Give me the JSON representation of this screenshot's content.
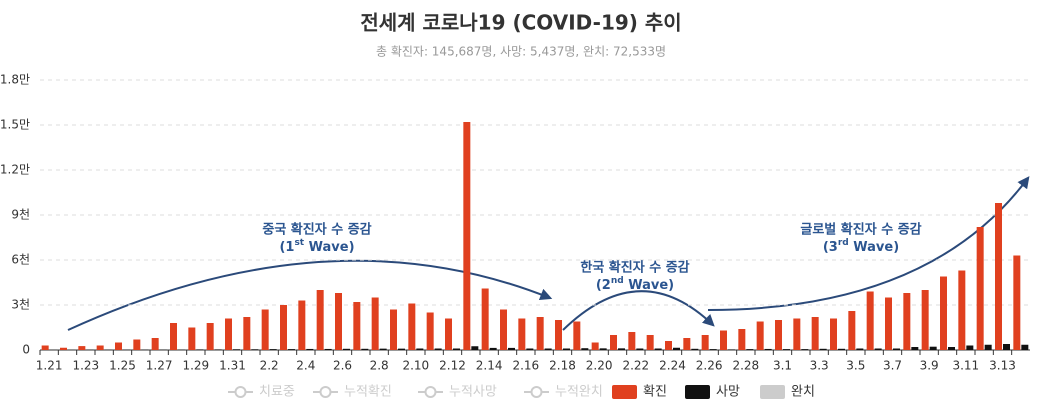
{
  "chart_data": {
    "type": "bar",
    "title": "전세계 코로나19 (COVID-19) 추이",
    "subtitle": "총 확진자: 145,687명, 사망: 5,437명, 완치: 72,533명",
    "categories": [
      "1.21",
      null,
      "1.23",
      null,
      "1.25",
      null,
      "1.27",
      null,
      "1.29",
      null,
      "1.31",
      null,
      "2.2",
      null,
      "2.4",
      null,
      "2.6",
      null,
      "2.8",
      null,
      "2.10",
      null,
      "2.12",
      null,
      "2.14",
      null,
      "2.16",
      null,
      "2.18",
      null,
      "2.20",
      null,
      "2.22",
      null,
      "2.24",
      null,
      "2.26",
      null,
      "2.28",
      null,
      "3.1",
      null,
      "3.3",
      null,
      "3.5",
      null,
      "3.7",
      null,
      "3.9",
      null,
      "3.11",
      null,
      "3.13",
      null
    ],
    "series": [
      {
        "name": "확진",
        "color": "#e0401f",
        "values": [
          300,
          150,
          260,
          300,
          500,
          700,
          800,
          1800,
          1500,
          1800,
          2100,
          2200,
          2700,
          3000,
          3300,
          4000,
          3800,
          3200,
          3500,
          2700,
          3100,
          2500,
          2100,
          15200,
          4100,
          2700,
          2100,
          2200,
          2000,
          1900,
          500,
          1000,
          1200,
          1000,
          600,
          800,
          1000,
          1300,
          1400,
          1900,
          2000,
          2100,
          2200,
          2100,
          2600,
          3900,
          3500,
          3800,
          4000,
          4900,
          5300,
          8200,
          9800,
          6300
        ]
      },
      {
        "name": "사망",
        "color": "#111111",
        "values": [
          10,
          10,
          20,
          20,
          20,
          30,
          30,
          30,
          40,
          40,
          50,
          50,
          60,
          60,
          70,
          70,
          80,
          80,
          90,
          90,
          100,
          100,
          100,
          250,
          140,
          140,
          100,
          100,
          100,
          120,
          110,
          110,
          100,
          100,
          150,
          80,
          60,
          40,
          60,
          70,
          60,
          60,
          80,
          80,
          100,
          100,
          100,
          200,
          220,
          200,
          300,
          350,
          400,
          350
        ]
      }
    ],
    "legend": [
      {
        "name": "치료중",
        "color": "#cccccc",
        "kind": "line"
      },
      {
        "name": "누적확진",
        "color": "#cccccc",
        "kind": "line"
      },
      {
        "name": "누적사망",
        "color": "#cccccc",
        "kind": "line"
      },
      {
        "name": "누적완치",
        "color": "#cccccc",
        "kind": "line"
      },
      {
        "name": "확진",
        "color": "#e0401f",
        "kind": "rect"
      },
      {
        "name": "사망",
        "color": "#111111",
        "kind": "rect"
      },
      {
        "name": "완치",
        "color": "#cccccc",
        "kind": "rect"
      }
    ],
    "annotations": [
      {
        "text": "중국 확진자 수 증감",
        "num": "(1",
        "sup": "st",
        "wave": " Wave)"
      },
      {
        "text": "한국 확진자 수 증감",
        "num": "(2",
        "sup": "nd",
        "wave": " Wave)"
      },
      {
        "text": "글로벌 확진자 수 증감",
        "num": "(3",
        "sup": "rd",
        "wave": " Wave)"
      }
    ],
    "ylim": [
      0,
      18000
    ],
    "yticks": [
      0,
      {
        "value": 3000,
        "label": "3천"
      },
      {
        "value": 6000,
        "label": "6천"
      },
      {
        "value": 9000,
        "label": "9천"
      },
      {
        "value": 12000,
        "label": "1.2만"
      },
      {
        "value": 15000,
        "label": "1.5만"
      },
      {
        "value": 18000,
        "label": "1.8만"
      }
    ],
    "grid": true
  }
}
